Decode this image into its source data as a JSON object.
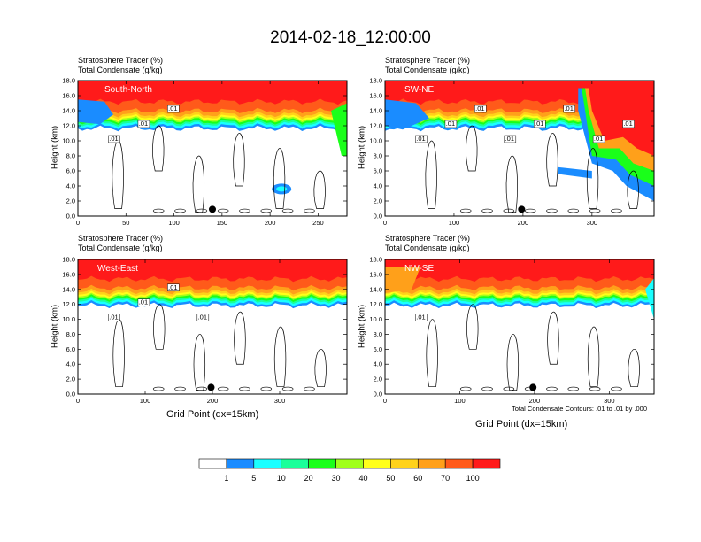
{
  "title": "2014-02-18_12:00:00",
  "panel_title_line1": "Stratosphere Tracer   (%)",
  "panel_title_line2": "Total Condensate   (g/kg)",
  "ylabel": "Height (km)",
  "xlabel": "Grid Point (dx=15km)",
  "contour_note": "Total Condensate Contours: .01 to .01 by .000",
  "colors": {
    "red": "#ff1a1a",
    "orange_red": "#ff5a1a",
    "orange": "#ffa01a",
    "yellow_orange": "#ffd21a",
    "yellow": "#ffff1a",
    "yellow_green": "#a0ff1a",
    "green": "#1aff1a",
    "aqua_green": "#1aff9a",
    "cyan": "#1affff",
    "blue": "#1a8cff",
    "white": "#ffffff"
  },
  "colorbar": {
    "labels": [
      "1",
      "5",
      "10",
      "20",
      "30",
      "40",
      "50",
      "60",
      "70",
      "100"
    ],
    "colors": [
      "#ffffff",
      "#1a8cff",
      "#1affff",
      "#1aff9a",
      "#1aff1a",
      "#a0ff1a",
      "#ffff1a",
      "#ffd21a",
      "#ffa01a",
      "#ff5a1a",
      "#ff1a1a"
    ]
  },
  "chart_data": [
    {
      "type": "heatmap",
      "name": "South-North",
      "ylim": [
        0,
        18
      ],
      "yticks": [
        "0.0",
        "2.0",
        "4.0",
        "6.0",
        "8.0",
        "10.0",
        "12.0",
        "14.0",
        "16.0",
        "18.0"
      ],
      "xlim": [
        0,
        280
      ],
      "xticks": [
        0,
        50,
        100,
        150,
        200,
        250
      ],
      "tropopause_km": 16.0,
      "marker_x": 140,
      "contour_labels": [
        ".01",
        ".01",
        ".01"
      ]
    },
    {
      "type": "heatmap",
      "name": "SW-NE",
      "ylim": [
        0,
        18
      ],
      "yticks": [
        "0.0",
        "2.0",
        "4.0",
        "6.0",
        "8.0",
        "10.0",
        "12.0",
        "14.0",
        "16.0",
        "18.0"
      ],
      "xlim": [
        0,
        390
      ],
      "xticks": [
        0,
        100,
        200,
        300
      ],
      "tropopause_km": 16.0,
      "marker_x": 198,
      "contour_labels": [
        ".01",
        ".01",
        ".01",
        ".01",
        ".01",
        ".01",
        ".01",
        ".01"
      ]
    },
    {
      "type": "heatmap",
      "name": "West-East",
      "ylim": [
        0,
        18
      ],
      "yticks": [
        "0.0",
        "2.0",
        "4.0",
        "6.0",
        "8.0",
        "10.0",
        "12.0",
        "14.0",
        "16.0",
        "18.0"
      ],
      "xlim": [
        0,
        400
      ],
      "xticks": [
        0,
        100,
        200,
        300
      ],
      "tropopause_km": 16.2,
      "marker_x": 198,
      "contour_labels": [
        ".01",
        ".01",
        ".01",
        ".01"
      ]
    },
    {
      "type": "heatmap",
      "name": "NW-SE",
      "ylim": [
        0,
        18
      ],
      "yticks": [
        "0.0",
        "2.0",
        "4.0",
        "6.0",
        "8.0",
        "10.0",
        "12.0",
        "14.0",
        "16.0",
        "18.0"
      ],
      "xlim": [
        0,
        360
      ],
      "xticks": [
        0,
        100,
        200,
        300
      ],
      "tropopause_km": 16.2,
      "marker_x": 198,
      "contour_labels": [
        ".01"
      ]
    }
  ]
}
